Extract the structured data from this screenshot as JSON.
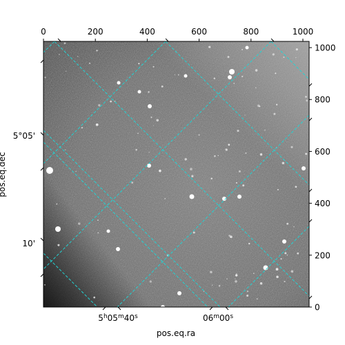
{
  "figure": {
    "xlabel": "pos.eq.ra",
    "ylabel": "pos.eq.dec",
    "pixel_x_ticks": [
      "0",
      "200",
      "400",
      "600",
      "800",
      "1000"
    ],
    "pixel_y_ticks": [
      "0",
      "200",
      "400",
      "600",
      "800",
      "1000"
    ],
    "ra_ticks": [
      {
        "h": "5",
        "m": "05",
        "s": "40"
      },
      {
        "h": "",
        "m": "06",
        "s": "00"
      }
    ],
    "dec_ticks": [
      "5°05'",
      "10'"
    ],
    "grid_color": "#22d3d3",
    "image_range": {
      "x": [
        0,
        1024
      ],
      "y": [
        0,
        1024
      ]
    }
  }
}
